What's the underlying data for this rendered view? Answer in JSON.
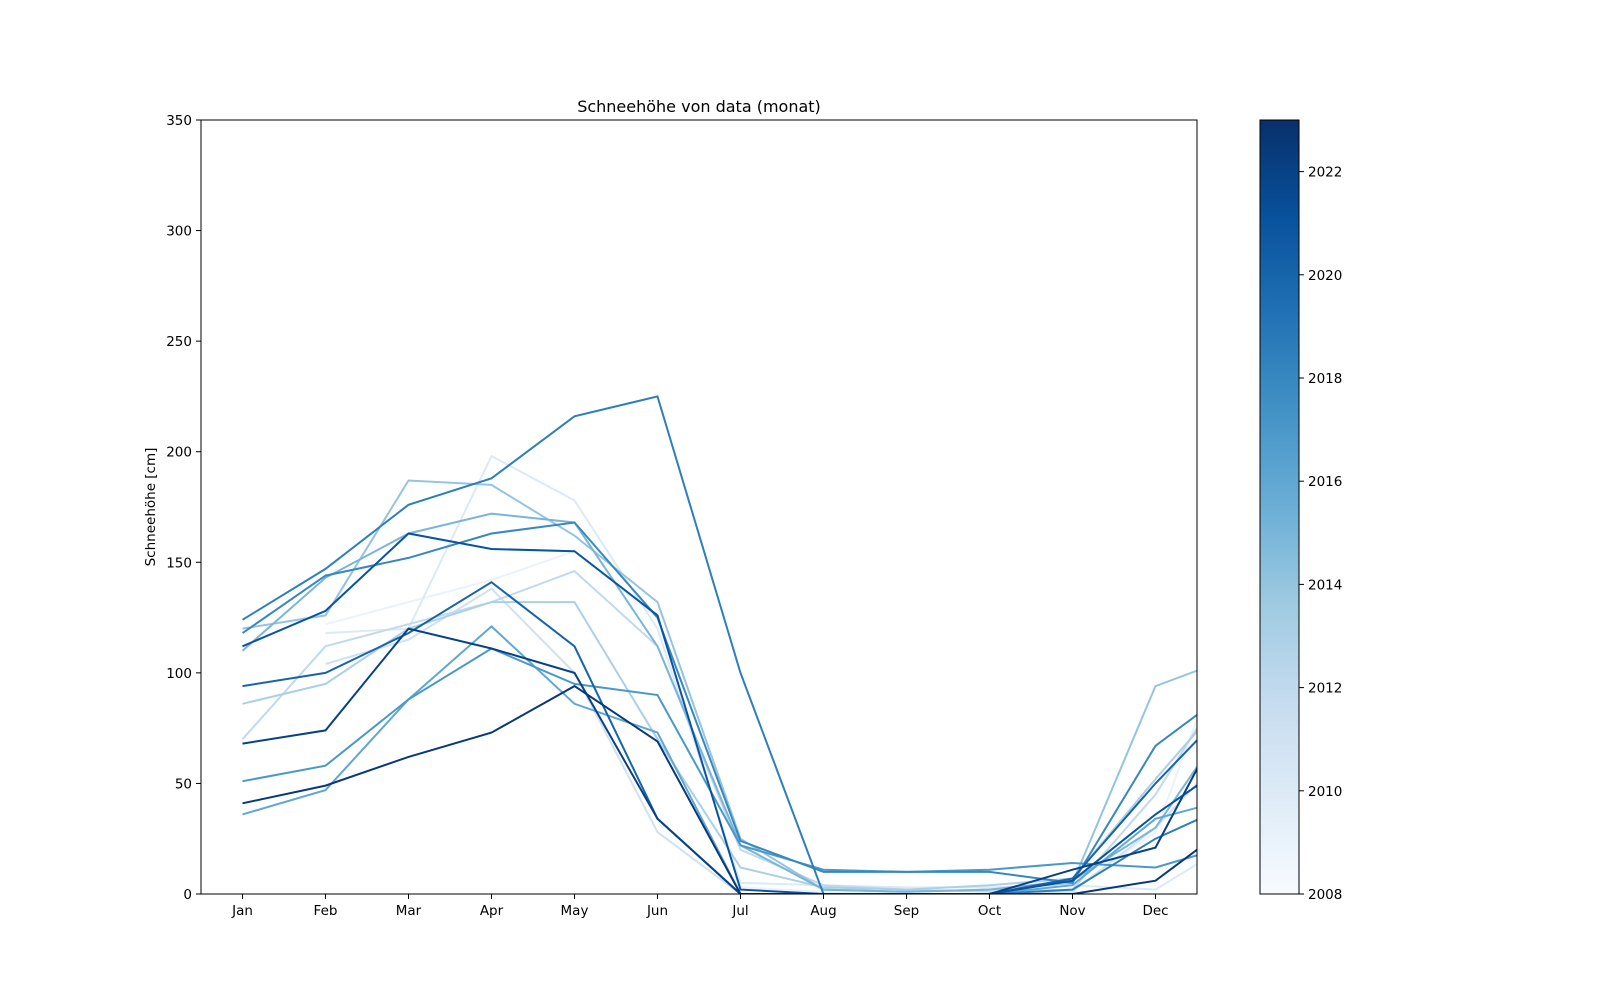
{
  "chart_data": {
    "type": "line",
    "title": "Schneehöhe von data (monat)",
    "xlabel": "",
    "ylabel": "Schneehöhe [cm]",
    "x": [
      0.5,
      1.5,
      2.5,
      3.5,
      4.5,
      5.5,
      6.5,
      7.5,
      8.5,
      9.5,
      10.5,
      11.5,
      12.5
    ],
    "xlim": [
      0,
      12
    ],
    "ylim": [
      0,
      350
    ],
    "x_tick_positions": [
      0.5,
      1.5,
      2.5,
      3.5,
      4.5,
      5.5,
      6.5,
      7.5,
      8.5,
      9.5,
      10.5,
      11.5
    ],
    "x_tick_labels": [
      "Jan",
      "Feb",
      "Mar",
      "Apr",
      "May",
      "Jun",
      "Jul",
      "Aug",
      "Sep",
      "Oct",
      "Nov",
      "Dec"
    ],
    "y_ticks": [
      0,
      50,
      100,
      150,
      200,
      250,
      300,
      350
    ],
    "colorbar": {
      "colormap": "Blues",
      "min": 2008,
      "max": 2023,
      "ticks": [
        2008,
        2010,
        2012,
        2014,
        2016,
        2018,
        2020,
        2022
      ],
      "gradient_colors": [
        "#f7fbff",
        "#deebf7",
        "#c6dbef",
        "#9ecae1",
        "#6baed6",
        "#4292c6",
        "#2171b5",
        "#08519c",
        "#08306b"
      ]
    },
    "series": [
      {
        "year": 2009,
        "values": [
          null,
          122,
          132,
          142,
          155,
          125,
          3,
          1,
          0,
          0,
          2,
          28,
          130
        ]
      },
      {
        "year": 2010,
        "values": [
          null,
          118,
          120,
          198,
          178,
          120,
          5,
          4,
          3,
          3,
          4,
          2,
          25
        ]
      },
      {
        "year": 2011,
        "values": [
          null,
          104,
          115,
          138,
          100,
          28,
          0,
          0,
          0,
          0,
          1,
          30,
          70
        ]
      },
      {
        "year": 2012,
        "values": [
          70,
          112,
          122,
          132,
          146,
          112,
          20,
          4,
          2,
          1,
          2,
          45,
          105
        ]
      },
      {
        "year": 2013,
        "values": [
          86,
          95,
          120,
          132,
          132,
          70,
          12,
          3,
          2,
          4,
          7,
          52,
          95
        ]
      },
      {
        "year": 2014,
        "values": [
          120,
          126,
          187,
          185,
          162,
          132,
          25,
          2,
          1,
          2,
          5,
          94,
          108
        ]
      },
      {
        "year": 2015,
        "values": [
          110,
          143,
          163,
          172,
          168,
          112,
          22,
          2,
          1,
          2,
          6,
          30,
          85
        ]
      },
      {
        "year": 2016,
        "values": [
          36,
          47,
          88,
          121,
          86,
          73,
          0,
          0,
          0,
          0,
          4,
          34,
          44
        ]
      },
      {
        "year": 2017,
        "values": [
          51,
          58,
          88,
          111,
          95,
          90,
          22,
          11,
          10,
          11,
          14,
          12,
          23
        ]
      },
      {
        "year": 2018,
        "values": [
          118,
          144,
          152,
          163,
          168,
          125,
          24,
          10,
          10,
          10,
          5,
          67,
          95
        ]
      },
      {
        "year": 2018.5,
        "values": [
          124,
          147,
          176,
          188,
          216,
          225,
          100,
          0,
          0,
          0,
          2,
          25,
          42
        ]
      },
      {
        "year": 2020,
        "values": [
          94,
          100,
          118,
          141,
          112,
          34,
          0,
          0,
          0,
          0,
          7,
          50,
          89
        ]
      },
      {
        "year": 2021,
        "values": [
          112,
          128,
          163,
          156,
          155,
          126,
          2,
          0,
          0,
          0,
          6,
          36,
          62
        ]
      },
      {
        "year": 2022,
        "values": [
          68,
          74,
          120,
          111,
          100,
          34,
          0,
          0,
          0,
          0,
          11,
          21,
          92
        ]
      },
      {
        "year": 2022.5,
        "values": [
          41,
          49,
          62,
          73,
          94,
          69,
          0,
          0,
          0,
          0,
          0,
          6,
          34
        ]
      }
    ]
  }
}
